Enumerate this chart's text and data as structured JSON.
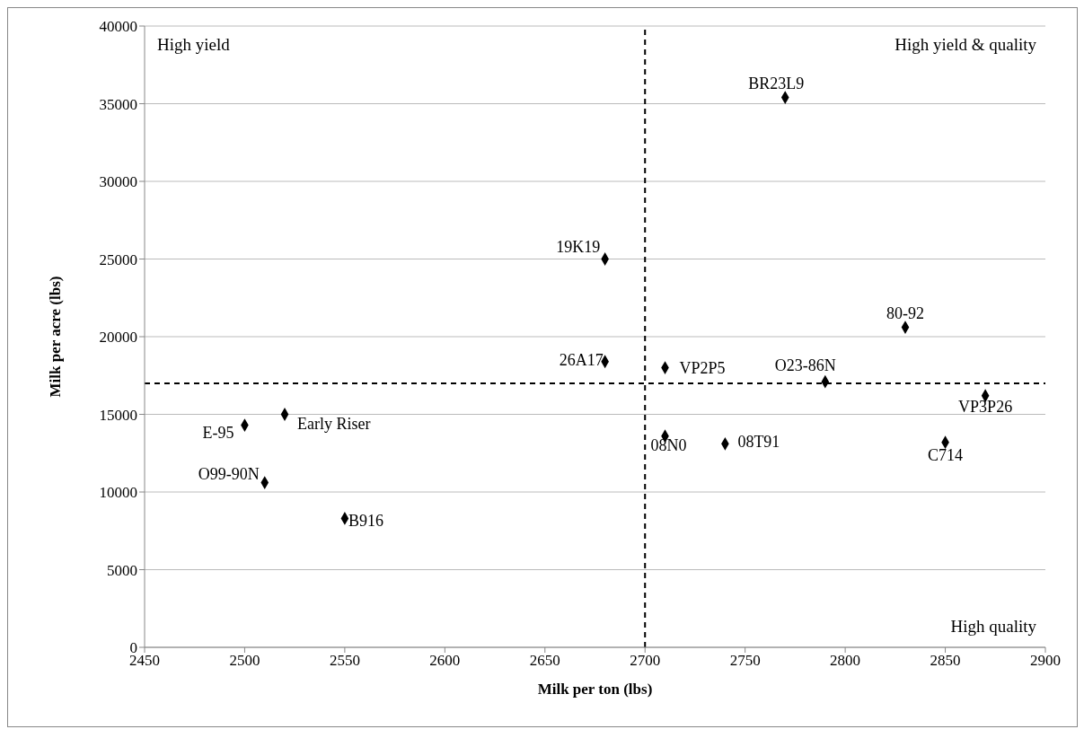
{
  "chart_data": {
    "type": "scatter",
    "xlabel": "Milk per ton (lbs)",
    "ylabel": "Milk per acre (lbs)",
    "x": [
      2500,
      2520,
      2510,
      2550,
      2680,
      2680,
      2710,
      2710,
      2740,
      2770,
      2790,
      2830,
      2870,
      2850
    ],
    "series": [
      {
        "color": "#000000",
        "values": [
          14300,
          15000,
          10600,
          8300,
          25000,
          18400,
          18000,
          13600,
          13100,
          35400,
          17100,
          20600,
          16200,
          13200
        ]
      }
    ],
    "xlim": [
      2450,
      2900
    ],
    "xticks": [
      2450,
      2500,
      2550,
      2600,
      2650,
      2700,
      2750,
      2800,
      2850,
      2900
    ],
    "ylim": [
      0,
      40000
    ],
    "yticks": [
      0,
      5000,
      10000,
      15000,
      20000,
      25000,
      30000,
      35000,
      40000
    ],
    "grid": "y",
    "marker": "diamond",
    "legend": false,
    "ref_lines": [
      {
        "axis": "x",
        "value": 2700,
        "color": "#000000",
        "line_style": "dashed"
      },
      {
        "axis": "y",
        "value": 17000,
        "color": "#000000",
        "line_style": "dashed"
      }
    ],
    "annotations": [
      "High yield",
      "High yield & quality",
      "High quality",
      {
        "text": "E-95",
        "x": 2500,
        "y": 14300
      },
      {
        "text": "Early Riser",
        "x": 2520,
        "y": 15000
      },
      {
        "text": "O99-90N",
        "x": 2510,
        "y": 10600
      },
      {
        "text": "B916",
        "x": 2550,
        "y": 8300
      },
      {
        "text": "19K19",
        "x": 2680,
        "y": 25000
      },
      {
        "text": "26A17",
        "x": 2680,
        "y": 18400
      },
      {
        "text": "VP2P5",
        "x": 2710,
        "y": 18000
      },
      {
        "text": "08N0",
        "x": 2710,
        "y": 13600
      },
      {
        "text": "08T91",
        "x": 2740,
        "y": 13100
      },
      {
        "text": "BR23L9",
        "x": 2770,
        "y": 35400
      },
      {
        "text": "O23-86N",
        "x": 2790,
        "y": 17100
      },
      {
        "text": "80-92",
        "x": 2830,
        "y": 20600
      },
      {
        "text": "VP3P26",
        "x": 2870,
        "y": 16200
      },
      {
        "text": "C714",
        "x": 2850,
        "y": 13200
      }
    ]
  }
}
